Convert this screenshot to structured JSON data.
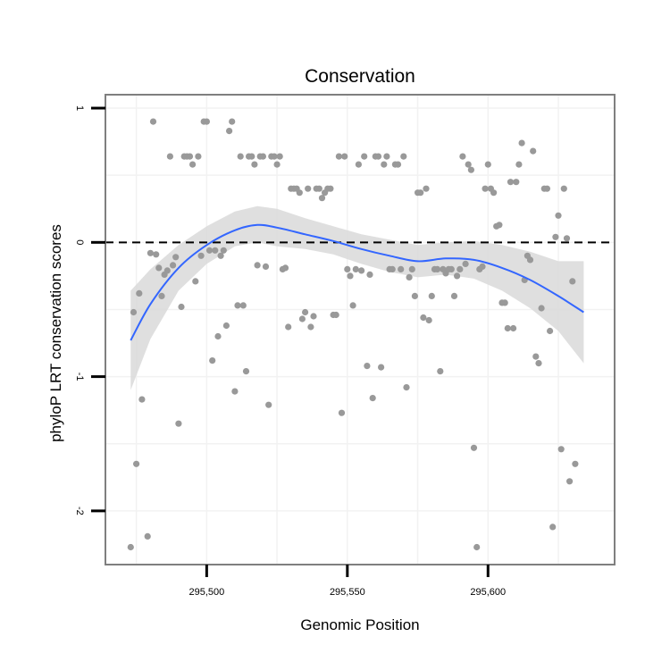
{
  "chart_data": {
    "type": "scatter",
    "title": "Conservation",
    "xlabel": "Genomic Position",
    "ylabel": "phyloP LRT conservation scores",
    "xlim": [
      295464,
      295645
    ],
    "ylim": [
      -2.4,
      1.1
    ],
    "xticks": [
      295500,
      295550,
      295600
    ],
    "xtick_labels": [
      "295,500",
      "295,550",
      "295,600"
    ],
    "yticks": [
      1,
      0,
      -1,
      -2
    ],
    "ytick_labels": [
      "1",
      "0",
      "-1",
      "-2"
    ],
    "reference_line": {
      "y": 0,
      "style": "dashed",
      "color": "#000000"
    },
    "grid": true,
    "legend": "none",
    "colors": {
      "points": "#999999",
      "smooth_line": "#3366ff",
      "confidence_band": "#d9d9d9",
      "panel_border": "#7f7f7f",
      "grid": "#f2f2f2"
    },
    "points": [
      [
        295473,
        -2.27
      ],
      [
        295474,
        -0.52
      ],
      [
        295475,
        -1.65
      ],
      [
        295476,
        -0.38
      ],
      [
        295477,
        -1.17
      ],
      [
        295479,
        -2.19
      ],
      [
        295480,
        -0.08
      ],
      [
        295481,
        0.9
      ],
      [
        295482,
        -0.09
      ],
      [
        295483,
        -0.19
      ],
      [
        295484,
        -0.4
      ],
      [
        295485,
        -0.24
      ],
      [
        295486,
        -0.21
      ],
      [
        295487,
        0.64
      ],
      [
        295488,
        -0.17
      ],
      [
        295489,
        -0.11
      ],
      [
        295490,
        -1.35
      ],
      [
        295491,
        -0.48
      ],
      [
        295492,
        0.64
      ],
      [
        295493,
        0.64
      ],
      [
        295494,
        0.64
      ],
      [
        295495,
        0.58
      ],
      [
        295496,
        -0.29
      ],
      [
        295497,
        0.64
      ],
      [
        295498,
        -0.1
      ],
      [
        295499,
        0.9
      ],
      [
        295500,
        0.9
      ],
      [
        295501,
        -0.06
      ],
      [
        295502,
        -0.88
      ],
      [
        295503,
        -0.06
      ],
      [
        295504,
        -0.7
      ],
      [
        295505,
        -0.1
      ],
      [
        295506,
        -0.06
      ],
      [
        295507,
        -0.62
      ],
      [
        295508,
        0.83
      ],
      [
        295509,
        0.9
      ],
      [
        295510,
        -1.11
      ],
      [
        295511,
        -0.47
      ],
      [
        295512,
        0.64
      ],
      [
        295513,
        -0.47
      ],
      [
        295514,
        -0.96
      ],
      [
        295515,
        0.64
      ],
      [
        295516,
        0.64
      ],
      [
        295517,
        0.58
      ],
      [
        295518,
        -0.17
      ],
      [
        295519,
        0.64
      ],
      [
        295520,
        0.64
      ],
      [
        295521,
        -0.18
      ],
      [
        295522,
        -1.21
      ],
      [
        295523,
        0.64
      ],
      [
        295524,
        0.64
      ],
      [
        295525,
        0.58
      ],
      [
        295526,
        0.64
      ],
      [
        295527,
        -0.2
      ],
      [
        295528,
        -0.19
      ],
      [
        295529,
        -0.63
      ],
      [
        295530,
        0.4
      ],
      [
        295531,
        0.4
      ],
      [
        295532,
        0.4
      ],
      [
        295533,
        0.37
      ],
      [
        295534,
        -0.57
      ],
      [
        295535,
        -0.52
      ],
      [
        295536,
        0.4
      ],
      [
        295537,
        -0.63
      ],
      [
        295538,
        -0.55
      ],
      [
        295539,
        0.4
      ],
      [
        295540,
        0.4
      ],
      [
        295541,
        0.33
      ],
      [
        295542,
        0.37
      ],
      [
        295543,
        0.4
      ],
      [
        295544,
        0.4
      ],
      [
        295545,
        -0.54
      ],
      [
        295546,
        -0.54
      ],
      [
        295547,
        0.64
      ],
      [
        295548,
        -1.27
      ],
      [
        295549,
        0.64
      ],
      [
        295550,
        -0.2
      ],
      [
        295551,
        -0.25
      ],
      [
        295552,
        -0.47
      ],
      [
        295553,
        -0.2
      ],
      [
        295554,
        0.58
      ],
      [
        295555,
        -0.21
      ],
      [
        295556,
        0.64
      ],
      [
        295557,
        -0.92
      ],
      [
        295558,
        -0.24
      ],
      [
        295559,
        -1.16
      ],
      [
        295560,
        0.64
      ],
      [
        295561,
        0.64
      ],
      [
        295562,
        -0.93
      ],
      [
        295563,
        0.58
      ],
      [
        295564,
        0.64
      ],
      [
        295565,
        -0.2
      ],
      [
        295566,
        -0.2
      ],
      [
        295567,
        0.58
      ],
      [
        295568,
        0.58
      ],
      [
        295569,
        -0.2
      ],
      [
        295570,
        0.64
      ],
      [
        295571,
        -1.08
      ],
      [
        295572,
        -0.26
      ],
      [
        295573,
        -0.2
      ],
      [
        295574,
        -0.4
      ],
      [
        295575,
        0.37
      ],
      [
        295576,
        0.37
      ],
      [
        295577,
        -0.56
      ],
      [
        295578,
        0.4
      ],
      [
        295579,
        -0.58
      ],
      [
        295580,
        -0.4
      ],
      [
        295581,
        -0.2
      ],
      [
        295582,
        -0.2
      ],
      [
        295583,
        -0.96
      ],
      [
        295584,
        -0.2
      ],
      [
        295585,
        -0.23
      ],
      [
        295586,
        -0.2
      ],
      [
        295587,
        -0.2
      ],
      [
        295588,
        -0.4
      ],
      [
        295589,
        -0.25
      ],
      [
        295590,
        -0.2
      ],
      [
        295591,
        0.64
      ],
      [
        295592,
        -0.16
      ],
      [
        295593,
        0.58
      ],
      [
        295594,
        0.54
      ],
      [
        295595,
        -1.53
      ],
      [
        295596,
        -2.27
      ],
      [
        295597,
        -0.2
      ],
      [
        295598,
        -0.18
      ],
      [
        295599,
        0.4
      ],
      [
        295600,
        0.58
      ],
      [
        295601,
        0.4
      ],
      [
        295602,
        0.37
      ],
      [
        295603,
        0.12
      ],
      [
        295604,
        0.13
      ],
      [
        295605,
        -0.45
      ],
      [
        295606,
        -0.45
      ],
      [
        295607,
        -0.64
      ],
      [
        295608,
        0.45
      ],
      [
        295609,
        -0.64
      ],
      [
        295610,
        0.45
      ],
      [
        295611,
        0.58
      ],
      [
        295612,
        0.74
      ],
      [
        295613,
        -0.28
      ],
      [
        295614,
        -0.1
      ],
      [
        295615,
        -0.13
      ],
      [
        295616,
        0.68
      ],
      [
        295617,
        -0.85
      ],
      [
        295618,
        -0.9
      ],
      [
        295619,
        -0.49
      ],
      [
        295620,
        0.4
      ],
      [
        295621,
        0.4
      ],
      [
        295622,
        -0.66
      ],
      [
        295623,
        -2.12
      ],
      [
        295624,
        0.04
      ],
      [
        295625,
        0.2
      ],
      [
        295626,
        -1.54
      ],
      [
        295627,
        0.4
      ],
      [
        295628,
        0.03
      ],
      [
        295629,
        -1.78
      ],
      [
        295630,
        -0.29
      ],
      [
        295631,
        -1.65
      ]
    ],
    "smooth": {
      "x": [
        295473,
        295480,
        295490,
        295500,
        295510,
        295518,
        295525,
        295535,
        295545,
        295555,
        295565,
        295575,
        295585,
        295595,
        295605,
        295615,
        295625,
        295634
      ],
      "y": [
        -0.73,
        -0.46,
        -0.19,
        -0.02,
        0.09,
        0.13,
        0.11,
        0.06,
        0.01,
        -0.05,
        -0.1,
        -0.14,
        -0.12,
        -0.13,
        -0.19,
        -0.28,
        -0.4,
        -0.52
      ],
      "lower": [
        -1.1,
        -0.72,
        -0.36,
        -0.16,
        -0.03,
        0.0,
        -0.03,
        -0.05,
        -0.09,
        -0.16,
        -0.22,
        -0.26,
        -0.24,
        -0.27,
        -0.36,
        -0.49,
        -0.66,
        -0.9
      ],
      "upper": [
        -0.36,
        -0.2,
        -0.02,
        0.12,
        0.23,
        0.27,
        0.25,
        0.18,
        0.12,
        0.06,
        0.02,
        -0.02,
        0.0,
        0.01,
        -0.02,
        -0.07,
        -0.14,
        -0.14
      ]
    }
  }
}
